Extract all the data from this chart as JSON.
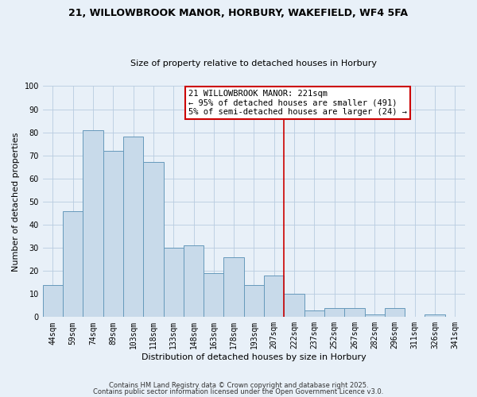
{
  "title": "21, WILLOWBROOK MANOR, HORBURY, WAKEFIELD, WF4 5FA",
  "subtitle": "Size of property relative to detached houses in Horbury",
  "xlabel": "Distribution of detached houses by size in Horbury",
  "ylabel": "Number of detached properties",
  "bar_labels": [
    "44sqm",
    "59sqm",
    "74sqm",
    "89sqm",
    "103sqm",
    "118sqm",
    "133sqm",
    "148sqm",
    "163sqm",
    "178sqm",
    "193sqm",
    "207sqm",
    "222sqm",
    "237sqm",
    "252sqm",
    "267sqm",
    "282sqm",
    "296sqm",
    "311sqm",
    "326sqm",
    "341sqm"
  ],
  "bar_values": [
    14,
    46,
    81,
    72,
    78,
    67,
    30,
    31,
    19,
    26,
    14,
    18,
    10,
    3,
    4,
    4,
    1,
    4,
    0,
    1,
    0
  ],
  "bar_color": "#c8daea",
  "bar_edge_color": "#6699bb",
  "vline_x_idx": 12,
  "vline_color": "#cc0000",
  "ylim": [
    0,
    100
  ],
  "yticks": [
    0,
    10,
    20,
    30,
    40,
    50,
    60,
    70,
    80,
    90,
    100
  ],
  "annotation_title": "21 WILLOWBROOK MANOR: 221sqm",
  "annotation_line1": "← 95% of detached houses are smaller (491)",
  "annotation_line2": "5% of semi-detached houses are larger (24) →",
  "annotation_box_color": "#ffffff",
  "annotation_box_edge": "#cc0000",
  "footnote1": "Contains HM Land Registry data © Crown copyright and database right 2025.",
  "footnote2": "Contains public sector information licensed under the Open Government Licence v3.0.",
  "grid_color": "#b8cce0",
  "background_color": "#e8f0f8",
  "title_fontsize": 9,
  "subtitle_fontsize": 8,
  "ylabel_fontsize": 8,
  "xlabel_fontsize": 8,
  "tick_fontsize": 7,
  "annot_fontsize": 7.5,
  "footnote_fontsize": 6
}
